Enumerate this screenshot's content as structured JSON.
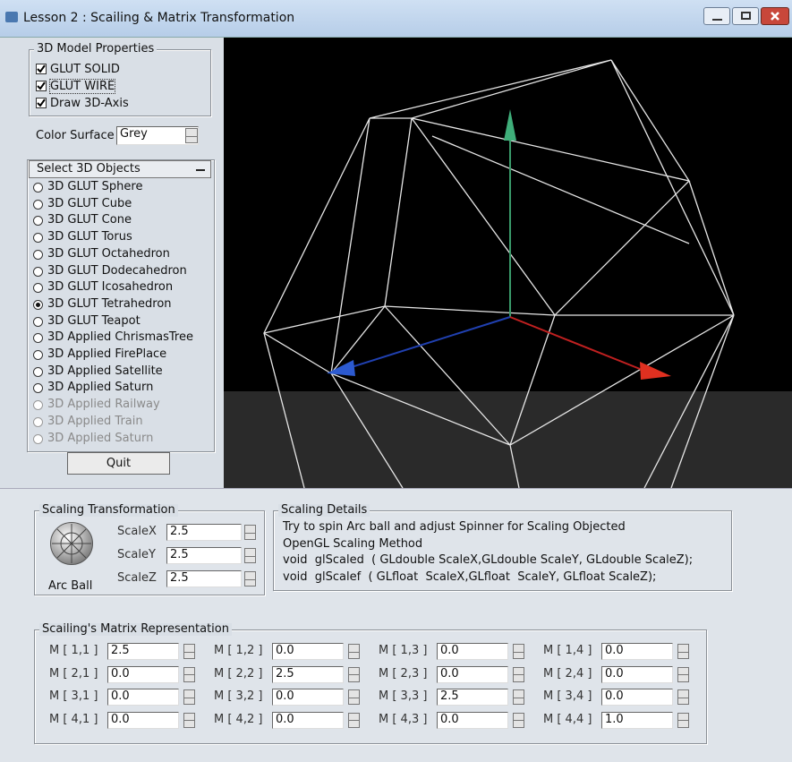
{
  "window": {
    "title": "Lesson 2 : Scailing & Matrix Transformation"
  },
  "model_properties": {
    "title": "3D Model Properties",
    "checkboxes": [
      {
        "label": "GLUT SOLID",
        "checked": true
      },
      {
        "label": "GLUT WIRE",
        "checked": true
      },
      {
        "label": "Draw 3D-Axis",
        "checked": true
      }
    ],
    "color_surface": {
      "label": "Color Surface",
      "value": "Grey"
    }
  },
  "select_objects": {
    "title": "Select 3D Objects",
    "selected": 7,
    "options": [
      {
        "label": "3D GLUT Sphere",
        "enabled": true
      },
      {
        "label": "3D GLUT Cube",
        "enabled": true
      },
      {
        "label": "3D GLUT Cone",
        "enabled": true
      },
      {
        "label": "3D GLUT Torus",
        "enabled": true
      },
      {
        "label": "3D GLUT Octahedron",
        "enabled": true
      },
      {
        "label": "3D GLUT Dodecahedron",
        "enabled": true
      },
      {
        "label": "3D GLUT Icosahedron",
        "enabled": true
      },
      {
        "label": "3D GLUT Tetrahedron",
        "enabled": true
      },
      {
        "label": "3D GLUT Teapot",
        "enabled": true
      },
      {
        "label": "3D Applied ChrismasTree",
        "enabled": true
      },
      {
        "label": "3D Applied FirePlace",
        "enabled": true
      },
      {
        "label": "3D Applied Satellite",
        "enabled": true
      },
      {
        "label": "3D Applied Saturn",
        "enabled": true
      },
      {
        "label": "3D Applied Railway",
        "enabled": false
      },
      {
        "label": "3D Applied Train",
        "enabled": false
      },
      {
        "label": "3D Applied Saturn",
        "enabled": false
      }
    ]
  },
  "quit_button": "Quit",
  "scaling": {
    "title": "Scaling Transformation",
    "arc_ball": "Arc Ball",
    "fields": [
      {
        "label": "ScaleX",
        "value": "2.5"
      },
      {
        "label": "ScaleY",
        "value": "2.5"
      },
      {
        "label": "ScaleZ",
        "value": "2.5"
      }
    ]
  },
  "details": {
    "title": "Scaling Details",
    "lines": [
      "Try to spin Arc ball and adjust Spinner for Scaling Objected",
      "OpenGL Scaling Method",
      "void  glScaled  ( GLdouble ScaleX,GLdouble ScaleY, GLdouble ScaleZ);",
      "void  glScalef  ( GLfloat  ScaleX,GLfloat  ScaleY, GLfloat ScaleZ);"
    ]
  },
  "matrix": {
    "title": "Scailing's Matrix Representation",
    "cells": [
      [
        {
          "label": "M [ 1,1 ]",
          "value": "2.5"
        },
        {
          "label": "M [ 1,2 ]",
          "value": "0.0"
        },
        {
          "label": "M [ 1,3 ]",
          "value": "0.0"
        },
        {
          "label": "M [ 1,4 ]",
          "value": "0.0"
        }
      ],
      [
        {
          "label": "M [ 2,1 ]",
          "value": "0.0"
        },
        {
          "label": "M [ 2,2 ]",
          "value": "2.5"
        },
        {
          "label": "M [ 2,3 ]",
          "value": "0.0"
        },
        {
          "label": "M [ 2,4 ]",
          "value": "0.0"
        }
      ],
      [
        {
          "label": "M [ 3,1 ]",
          "value": "0.0"
        },
        {
          "label": "M [ 3,2 ]",
          "value": "0.0"
        },
        {
          "label": "M [ 3,3 ]",
          "value": "2.5"
        },
        {
          "label": "M [ 3,4 ]",
          "value": "0.0"
        }
      ],
      [
        {
          "label": "M [ 4,1 ]",
          "value": "0.0"
        },
        {
          "label": "M [ 4,2 ]",
          "value": "0.0"
        },
        {
          "label": "M [ 4,3 ]",
          "value": "0.0"
        },
        {
          "label": "M [ 4,4 ]",
          "value": "1.0"
        }
      ]
    ]
  }
}
